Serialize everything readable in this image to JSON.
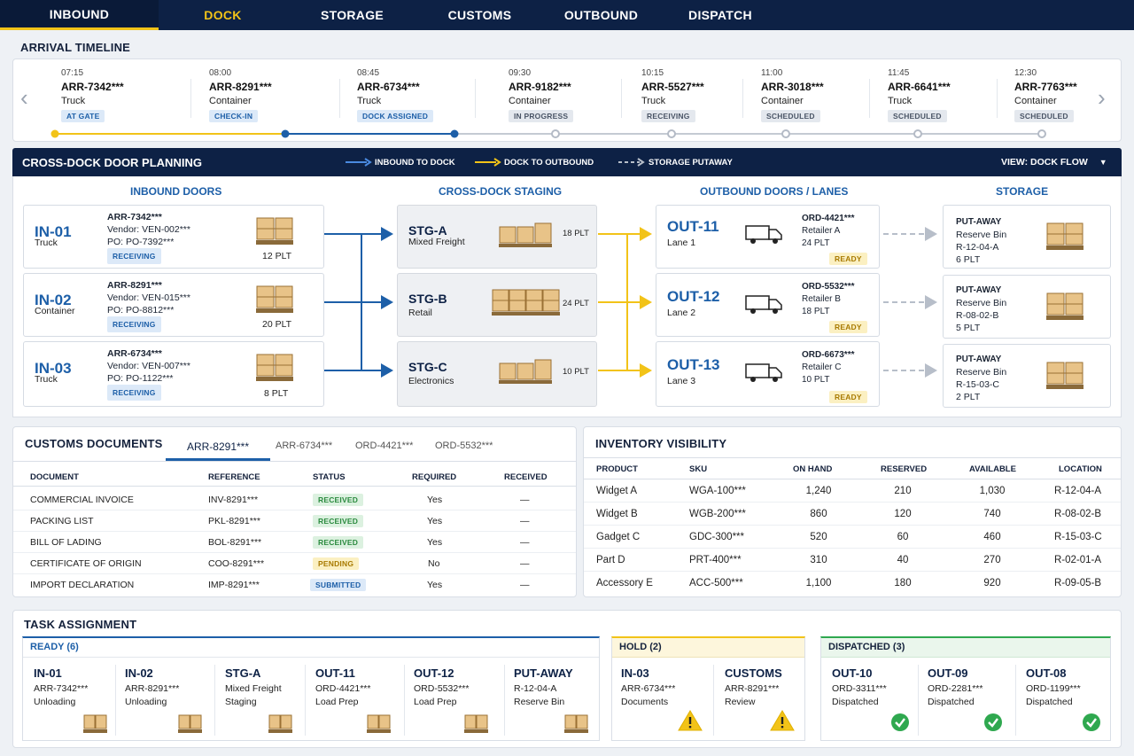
{
  "nav": {
    "tabs": [
      {
        "label": "INBOUND",
        "active": true
      },
      {
        "label": "DOCK",
        "active": false
      },
      {
        "label": "STORAGE",
        "active": false
      },
      {
        "label": "CUSTOMS",
        "active": false
      },
      {
        "label": "OUTBOUND",
        "active": false
      },
      {
        "label": "DISPATCH",
        "active": false
      }
    ]
  },
  "timeline": {
    "title": "ARRIVAL TIMELINE",
    "items": [
      {
        "time": "07:15",
        "id": "ARR-7342***",
        "type": "Truck",
        "status": "AT GATE",
        "style": "blue"
      },
      {
        "time": "08:00",
        "id": "ARR-8291***",
        "type": "Container",
        "status": "CHECK-IN",
        "style": "blue"
      },
      {
        "time": "08:45",
        "id": "ARR-6734***",
        "type": "Truck",
        "status": "DOCK ASSIGNED",
        "style": "blue"
      },
      {
        "time": "09:30",
        "id": "ARR-9182***",
        "type": "Container",
        "status": "IN PROGRESS",
        "style": "gray"
      },
      {
        "time": "10:15",
        "id": "ARR-5527***",
        "type": "Truck",
        "status": "RECEIVING",
        "style": "gray"
      },
      {
        "time": "11:00",
        "id": "ARR-3018***",
        "type": "Container",
        "status": "SCHEDULED",
        "style": "gray"
      },
      {
        "time": "11:45",
        "id": "ARR-6641***",
        "type": "Truck",
        "status": "SCHEDULED",
        "style": "gray"
      },
      {
        "time": "12:30",
        "id": "ARR-7763***",
        "type": "Container",
        "status": "SCHEDULED",
        "style": "gray"
      }
    ]
  },
  "crossdock": {
    "title": "CROSS-DOCK DOOR PLANNING",
    "legend": {
      "inbound": "INBOUND TO DOCK",
      "outbound": "DOCK TO OUTBOUND",
      "putaway": "STORAGE PUTAWAY"
    },
    "view_label": "VIEW: DOCK FLOW",
    "columns": {
      "inbound": "INBOUND DOORS",
      "staging": "CROSS-DOCK STAGING",
      "outbound": "OUTBOUND DOORS / LANES",
      "storage": "STORAGE"
    },
    "inbound": [
      {
        "door": "IN-01",
        "type": "Truck",
        "arr": "ARR-7342***",
        "vendor": "Vendor: VEN-002***",
        "po": "PO: PO-7392***",
        "status": "RECEIVING",
        "plt": "12 PLT"
      },
      {
        "door": "IN-02",
        "type": "Container",
        "arr": "ARR-8291***",
        "vendor": "Vendor: VEN-015***",
        "po": "PO: PO-8812***",
        "status": "RECEIVING",
        "plt": "20 PLT"
      },
      {
        "door": "IN-03",
        "type": "Truck",
        "arr": "ARR-6734***",
        "vendor": "Vendor: VEN-007***",
        "po": "PO: PO-1122***",
        "status": "RECEIVING",
        "plt": "8 PLT"
      }
    ],
    "staging": [
      {
        "id": "STG-A",
        "desc": "Mixed Freight",
        "plt": "18 PLT"
      },
      {
        "id": "STG-B",
        "desc": "Retail",
        "plt": "24 PLT"
      },
      {
        "id": "STG-C",
        "desc": "Electronics",
        "plt": "10 PLT"
      }
    ],
    "outbound": [
      {
        "door": "OUT-11",
        "lane": "Lane 1",
        "ord": "ORD-4421***",
        "retailer": "Retailer A",
        "plt": "24 PLT",
        "status": "READY"
      },
      {
        "door": "OUT-12",
        "lane": "Lane 2",
        "ord": "ORD-5532***",
        "retailer": "Retailer B",
        "plt": "18 PLT",
        "status": "READY"
      },
      {
        "door": "OUT-13",
        "lane": "Lane 3",
        "ord": "ORD-6673***",
        "retailer": "Retailer C",
        "plt": "10 PLT",
        "status": "READY"
      }
    ],
    "storage": [
      {
        "label": "PUT-AWAY",
        "bin": "Reserve Bin",
        "loc": "R-12-04-A",
        "plt": "6 PLT"
      },
      {
        "label": "PUT-AWAY",
        "bin": "Reserve Bin",
        "loc": "R-08-02-B",
        "plt": "5 PLT"
      },
      {
        "label": "PUT-AWAY",
        "bin": "Reserve Bin",
        "loc": "R-15-03-C",
        "plt": "2 PLT"
      }
    ]
  },
  "customs": {
    "title": "CUSTOMS DOCUMENTS",
    "tabs": [
      "ARR-8291***",
      "ARR-6734***",
      "ORD-4421***",
      "ORD-5532***"
    ],
    "headers": [
      "DOCUMENT",
      "REFERENCE",
      "STATUS",
      "REQUIRED",
      "RECEIVED"
    ],
    "rows": [
      {
        "doc": "COMMERCIAL INVOICE",
        "ref": "INV-8291***",
        "status": "RECEIVED",
        "style": "green",
        "req": "Yes",
        "rec": "—"
      },
      {
        "doc": "PACKING LIST",
        "ref": "PKL-8291***",
        "status": "RECEIVED",
        "style": "green",
        "req": "Yes",
        "rec": "—"
      },
      {
        "doc": "BILL OF LADING",
        "ref": "BOL-8291***",
        "status": "RECEIVED",
        "style": "green",
        "req": "Yes",
        "rec": "—"
      },
      {
        "doc": "CERTIFICATE OF ORIGIN",
        "ref": "COO-8291***",
        "status": "PENDING",
        "style": "yellow",
        "req": "No",
        "rec": "—"
      },
      {
        "doc": "IMPORT DECLARATION",
        "ref": "IMP-8291***",
        "status": "SUBMITTED",
        "style": "sub",
        "req": "Yes",
        "rec": "—"
      }
    ]
  },
  "inventory": {
    "title": "INVENTORY VISIBILITY",
    "headers": [
      "PRODUCT",
      "SKU",
      "ON HAND",
      "RESERVED",
      "AVAILABLE",
      "LOCATION"
    ],
    "rows": [
      [
        "Widget A",
        "WGA-100***",
        "1,240",
        "210",
        "1,030",
        "R-12-04-A"
      ],
      [
        "Widget B",
        "WGB-200***",
        "860",
        "120",
        "740",
        "R-08-02-B"
      ],
      [
        "Gadget C",
        "GDC-300***",
        "520",
        "60",
        "460",
        "R-15-03-C"
      ],
      [
        "Part D",
        "PRT-400***",
        "310",
        "40",
        "270",
        "R-02-01-A"
      ],
      [
        "Accessory E",
        "ACC-500***",
        "1,100",
        "180",
        "920",
        "R-09-05-B"
      ]
    ]
  },
  "tasks": {
    "title": "TASK ASSIGNMENT",
    "ready": {
      "label": "READY (6)",
      "items": [
        {
          "id": "IN-01",
          "l1": "ARR-7342***",
          "l2": "Unloading"
        },
        {
          "id": "IN-02",
          "l1": "ARR-8291***",
          "l2": "Unloading"
        },
        {
          "id": "STG-A",
          "l1": "Mixed Freight",
          "l2": "Staging"
        },
        {
          "id": "OUT-11",
          "l1": "ORD-4421***",
          "l2": "Load Prep"
        },
        {
          "id": "OUT-12",
          "l1": "ORD-5532***",
          "l2": "Load Prep"
        },
        {
          "id": "PUT-AWAY",
          "l1": "R-12-04-A",
          "l2": "Reserve Bin"
        }
      ]
    },
    "hold": {
      "label": "HOLD (2)",
      "items": [
        {
          "id": "IN-03",
          "l1": "ARR-6734***",
          "l2": "Documents"
        },
        {
          "id": "CUSTOMS",
          "l1": "ARR-8291***",
          "l2": "Review"
        }
      ]
    },
    "dispatched": {
      "label": "DISPATCHED (3)",
      "items": [
        {
          "id": "OUT-10",
          "l1": "ORD-3311***",
          "l2": "Dispatched"
        },
        {
          "id": "OUT-09",
          "l1": "ORD-2281***",
          "l2": "Dispatched"
        },
        {
          "id": "OUT-08",
          "l1": "ORD-1199***",
          "l2": "Dispatched"
        }
      ]
    }
  },
  "colors": {
    "navy": "#0d2145",
    "blue": "#1d5fa8",
    "yellow": "#f2c318",
    "gray": "#9aa3b0",
    "green": "#2fa84f"
  }
}
